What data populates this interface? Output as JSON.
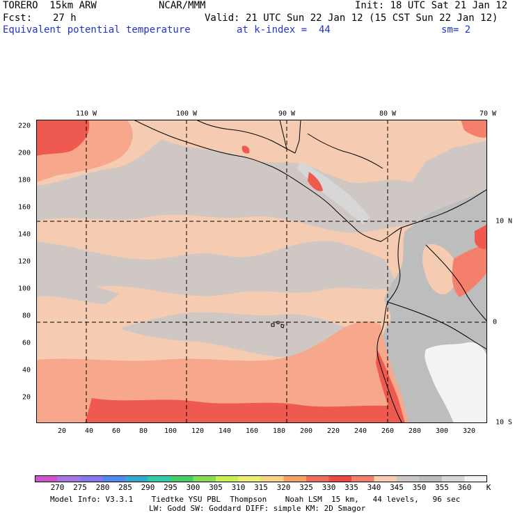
{
  "header": {
    "model": "TORERO  15km ARW",
    "center": "NCAR/MMM",
    "init": "Init: 18 UTC Sat 21 Jan 12",
    "fcst_label": "Fcst:",
    "fcst_value": "27 h",
    "valid": "Valid: 21 UTC Sun 22 Jan 12 (15 CST Sun 22 Jan 12)",
    "field": "Equivalent potential temperature",
    "level": "at k-index =  44",
    "smooth": "sm= 2"
  },
  "map": {
    "lon_labels": [
      "110 W",
      "100 W",
      "90 W",
      "80 W",
      "70 W"
    ],
    "y_ticks": [
      "220",
      "200",
      "180",
      "160",
      "140",
      "120",
      "100",
      "80",
      "60",
      "40",
      "20"
    ],
    "x_ticks": [
      "20",
      "40",
      "60",
      "80",
      "100",
      "120",
      "140",
      "160",
      "180",
      "200",
      "220",
      "240",
      "260",
      "280",
      "300",
      "320"
    ],
    "lat_labels": [
      "10 N",
      "0",
      "10 S"
    ],
    "colors": {
      "c335": "#ef5a50",
      "c330": "#f4806c",
      "c325": "#f7a78b",
      "c340": "#f5ccb2",
      "c345": "#cfc7c4",
      "c350": "#bdbdbd",
      "c355": "#d7d7d7",
      "c360": "#f3f3f3"
    }
  },
  "colorbar": {
    "labels": [
      "270",
      "275",
      "280",
      "285",
      "290",
      "295",
      "300",
      "305",
      "310",
      "315",
      "320",
      "325",
      "330",
      "335",
      "340",
      "345",
      "350",
      "355",
      "360"
    ],
    "unit": "K",
    "colors": [
      "#cc55cc",
      "#aa77dd",
      "#8877ee",
      "#5588ee",
      "#33aacc",
      "#33ccaa",
      "#44cc66",
      "#88dd55",
      "#ccee55",
      "#eeee77",
      "#f7d38a",
      "#f4a064",
      "#ef6f5c",
      "#ee4a44",
      "#f4806c",
      "#f5ccb2",
      "#cfc7c4",
      "#bdbdbd",
      "#d7d7d7",
      "#f3f3f3"
    ]
  },
  "footer": {
    "line1": "Model Info: V3.3.1    Tiedtke YSU PBL  Thompson    Noah LSM  15 km,   44 levels,   96 sec",
    "line2": "LW: Godd SW: Goddard DIFF: simple KM: 2D Smagor"
  }
}
